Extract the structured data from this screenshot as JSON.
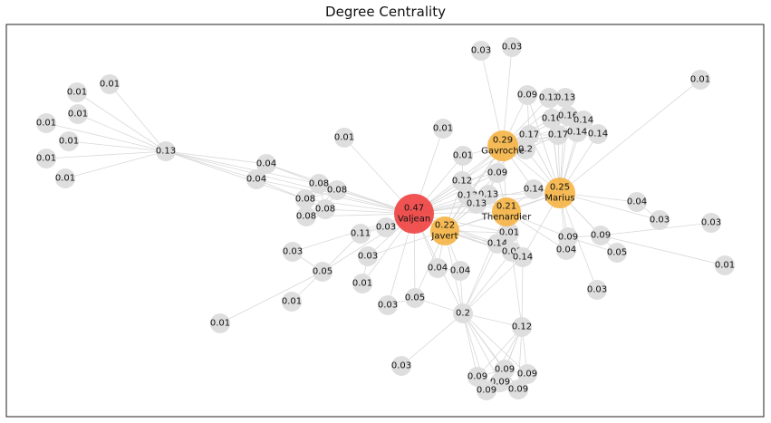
{
  "title": "Degree Centrality",
  "colors": {
    "default": "#dedede",
    "top": "#f5b444",
    "max": "#f04040",
    "edge": "#d8d8d8",
    "frame": "#222222"
  },
  "nodes": [
    {
      "id": "valjean",
      "value": "0.47",
      "name": "Valjean",
      "tier": "max"
    },
    {
      "id": "gavroche",
      "value": "0.29",
      "name": "Gavroche",
      "tier": "top"
    },
    {
      "id": "marius",
      "value": "0.25",
      "name": "Marius",
      "tier": "top"
    },
    {
      "id": "javert",
      "value": "0.22",
      "name": "Javert",
      "tier": "top"
    },
    {
      "id": "thenardier",
      "value": "0.21",
      "name": "Thenardier",
      "tier": "top"
    },
    {
      "id": "n_hub13",
      "value": "0.13"
    },
    {
      "id": "n_l1",
      "value": "0.01"
    },
    {
      "id": "n_l2",
      "value": "0.01"
    },
    {
      "id": "n_l3",
      "value": "0.01"
    },
    {
      "id": "n_l4",
      "value": "0.01"
    },
    {
      "id": "n_l5",
      "value": "0.01"
    },
    {
      "id": "n_l6",
      "value": "0.01"
    },
    {
      "id": "n_l7",
      "value": "0.01"
    },
    {
      "id": "n_l8",
      "value": "0.01"
    },
    {
      "id": "n_04a",
      "value": "0.04"
    },
    {
      "id": "n_04b",
      "value": "0.04"
    },
    {
      "id": "n_08a",
      "value": "0.08"
    },
    {
      "id": "n_08b",
      "value": "0.08"
    },
    {
      "id": "n_08c",
      "value": "0.08"
    },
    {
      "id": "n_08d",
      "value": "0.08"
    },
    {
      "id": "n_08e",
      "value": "0.08"
    },
    {
      "id": "n_01top",
      "value": "0.01"
    },
    {
      "id": "n_01mid",
      "value": "0.01"
    },
    {
      "id": "n_03top1",
      "value": "0.03"
    },
    {
      "id": "n_03top2",
      "value": "0.03"
    },
    {
      "id": "n_09top",
      "value": "0.09"
    },
    {
      "id": "n_12top",
      "value": "0.12"
    },
    {
      "id": "n_13top",
      "value": "0.13"
    },
    {
      "id": "n_16a",
      "value": "0.16"
    },
    {
      "id": "n_16b",
      "value": "0.16"
    },
    {
      "id": "n_14a",
      "value": "0.14"
    },
    {
      "id": "n_14b",
      "value": "0.14"
    },
    {
      "id": "n_14c",
      "value": "0.14"
    },
    {
      "id": "n_17a",
      "value": "0.17"
    },
    {
      "id": "n_17b",
      "value": "0.17"
    },
    {
      "id": "n_02",
      "value": "0.2"
    },
    {
      "id": "n_01tr",
      "value": "0.01"
    },
    {
      "id": "n_01g",
      "value": "0.01"
    },
    {
      "id": "n_09g",
      "value": "0.09"
    },
    {
      "id": "n_12g",
      "value": "0.12"
    },
    {
      "id": "n_13c1",
      "value": "0.13"
    },
    {
      "id": "n_13c2",
      "value": "0.13"
    },
    {
      "id": "n_13c3",
      "value": "0.13"
    },
    {
      "id": "n_14m",
      "value": "0.14"
    },
    {
      "id": "n_04r",
      "value": "0.04"
    },
    {
      "id": "n_03r1",
      "value": "0.03"
    },
    {
      "id": "n_03r2",
      "value": "0.03"
    },
    {
      "id": "n_09r",
      "value": "0.09"
    },
    {
      "id": "n_09r2",
      "value": "0.09"
    },
    {
      "id": "n_05r",
      "value": "0.05"
    },
    {
      "id": "n_04r2",
      "value": "0.04"
    },
    {
      "id": "n_01r",
      "value": "0.01"
    },
    {
      "id": "n_03r3",
      "value": "0.03"
    },
    {
      "id": "n_01t1",
      "value": "0.01"
    },
    {
      "id": "n_14t1",
      "value": "0.14"
    },
    {
      "id": "n_01t2",
      "value": "0.01"
    },
    {
      "id": "n_14t2",
      "value": "0.14"
    },
    {
      "id": "n_11",
      "value": "0.11"
    },
    {
      "id": "n_03v",
      "value": "0.03"
    },
    {
      "id": "n_03v2",
      "value": "0.03"
    },
    {
      "id": "n_03l",
      "value": "0.03"
    },
    {
      "id": "n_05l",
      "value": "0.05"
    },
    {
      "id": "n_01l1",
      "value": "0.01"
    },
    {
      "id": "n_01l2",
      "value": "0.01"
    },
    {
      "id": "n_01l3",
      "value": "0.01"
    },
    {
      "id": "n_04j1",
      "value": "0.04"
    },
    {
      "id": "n_04j2",
      "value": "0.04"
    },
    {
      "id": "n_05j",
      "value": "0.05"
    },
    {
      "id": "n_03j",
      "value": "0.03"
    },
    {
      "id": "n_hub2",
      "value": "0.2"
    },
    {
      "id": "n_12b",
      "value": "0.12"
    },
    {
      "id": "n_03b",
      "value": "0.03"
    },
    {
      "id": "n_09b1",
      "value": "0.09"
    },
    {
      "id": "n_09b2",
      "value": "0.09"
    },
    {
      "id": "n_09b3",
      "value": "0.09"
    },
    {
      "id": "n_09b4",
      "value": "0.09"
    },
    {
      "id": "n_09b5",
      "value": "0.09"
    },
    {
      "id": "n_09b6",
      "value": "0.09"
    }
  ]
}
